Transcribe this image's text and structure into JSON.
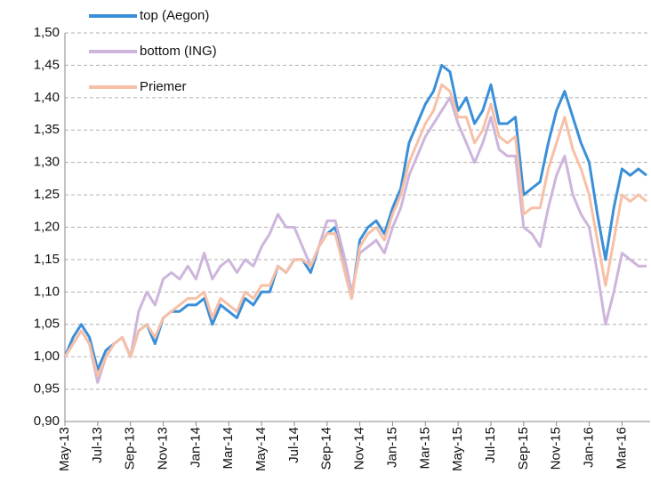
{
  "chart_data": {
    "type": "line",
    "categories": [
      "May-13",
      null,
      null,
      null,
      "Jul-13",
      null,
      null,
      null,
      "Sep-13",
      null,
      null,
      null,
      "Nov-13",
      null,
      null,
      null,
      "Jan-14",
      null,
      null,
      null,
      "Mar-14",
      null,
      null,
      null,
      "May-14",
      null,
      null,
      null,
      "Jul-14",
      null,
      null,
      null,
      "Sep-14",
      null,
      null,
      null,
      "Nov-14",
      null,
      null,
      null,
      "Jan-15",
      null,
      null,
      null,
      "Mar-15",
      null,
      null,
      null,
      "May-15",
      null,
      null,
      null,
      "Jul-15",
      null,
      null,
      null,
      "Sep-15",
      null,
      null,
      null,
      "Nov-15",
      null,
      null,
      null,
      "Jan-16",
      null,
      null,
      null,
      "Mar-16",
      null,
      null,
      null
    ],
    "series": [
      {
        "name": "top (Aegon)",
        "color": "#3a8fd9",
        "values": [
          1.0,
          1.03,
          1.05,
          1.03,
          0.98,
          1.01,
          1.02,
          1.03,
          1.0,
          1.04,
          1.05,
          1.02,
          1.06,
          1.07,
          1.07,
          1.08,
          1.08,
          1.09,
          1.05,
          1.08,
          1.07,
          1.06,
          1.09,
          1.08,
          1.1,
          1.1,
          1.14,
          1.13,
          1.15,
          1.15,
          1.13,
          1.17,
          1.19,
          1.2,
          1.14,
          1.09,
          1.18,
          1.2,
          1.21,
          1.19,
          1.23,
          1.26,
          1.33,
          1.36,
          1.39,
          1.41,
          1.45,
          1.44,
          1.38,
          1.4,
          1.36,
          1.38,
          1.42,
          1.36,
          1.36,
          1.37,
          1.25,
          1.26,
          1.27,
          1.33,
          1.38,
          1.41,
          1.37,
          1.33,
          1.3,
          1.22,
          1.15,
          1.23,
          1.29,
          1.28,
          1.29,
          1.28
        ]
      },
      {
        "name": "bottom (ING)",
        "color": "#cdb5dc",
        "values": [
          1.0,
          1.02,
          1.04,
          1.02,
          0.96,
          1.0,
          1.02,
          1.03,
          1.0,
          1.07,
          1.1,
          1.08,
          1.12,
          1.13,
          1.12,
          1.14,
          1.12,
          1.16,
          1.12,
          1.14,
          1.15,
          1.13,
          1.15,
          1.14,
          1.17,
          1.19,
          1.22,
          1.2,
          1.2,
          1.17,
          1.14,
          1.17,
          1.21,
          1.21,
          1.16,
          1.1,
          1.16,
          1.17,
          1.18,
          1.16,
          1.2,
          1.23,
          1.28,
          1.31,
          1.34,
          1.36,
          1.38,
          1.4,
          1.36,
          1.33,
          1.3,
          1.33,
          1.37,
          1.32,
          1.31,
          1.31,
          1.2,
          1.19,
          1.17,
          1.23,
          1.28,
          1.31,
          1.25,
          1.22,
          1.2,
          1.13,
          1.05,
          1.1,
          1.16,
          1.15,
          1.14,
          1.14
        ]
      },
      {
        "name": "Priemer",
        "color": "#f7c0a6",
        "values": [
          1.0,
          1.02,
          1.04,
          1.02,
          0.97,
          1.0,
          1.02,
          1.03,
          1.0,
          1.04,
          1.05,
          1.03,
          1.06,
          1.07,
          1.08,
          1.09,
          1.09,
          1.1,
          1.06,
          1.09,
          1.08,
          1.07,
          1.1,
          1.09,
          1.11,
          1.11,
          1.14,
          1.13,
          1.15,
          1.15,
          1.14,
          1.17,
          1.19,
          1.19,
          1.14,
          1.09,
          1.17,
          1.19,
          1.2,
          1.18,
          1.22,
          1.25,
          1.3,
          1.33,
          1.36,
          1.38,
          1.42,
          1.41,
          1.37,
          1.37,
          1.33,
          1.35,
          1.39,
          1.34,
          1.33,
          1.34,
          1.22,
          1.23,
          1.23,
          1.29,
          1.33,
          1.37,
          1.32,
          1.29,
          1.25,
          1.18,
          1.11,
          1.18,
          1.25,
          1.24,
          1.25,
          1.24
        ]
      }
    ],
    "ylim": [
      0.9,
      1.5
    ],
    "yticks": [
      {
        "value": 0.9,
        "label": "0,90"
      },
      {
        "value": 0.95,
        "label": "0,95"
      },
      {
        "value": 1.0,
        "label": "1,00"
      },
      {
        "value": 1.05,
        "label": "1,05"
      },
      {
        "value": 1.1,
        "label": "1,10"
      },
      {
        "value": 1.15,
        "label": "1,15"
      },
      {
        "value": 1.2,
        "label": "1,20"
      },
      {
        "value": 1.25,
        "label": "1,25"
      },
      {
        "value": 1.3,
        "label": "1,30"
      },
      {
        "value": 1.35,
        "label": "1,35"
      },
      {
        "value": 1.4,
        "label": "1,40"
      },
      {
        "value": 1.45,
        "label": "1,45"
      },
      {
        "value": 1.5,
        "label": "1,50"
      }
    ],
    "grid": true,
    "legend": "top-left"
  }
}
